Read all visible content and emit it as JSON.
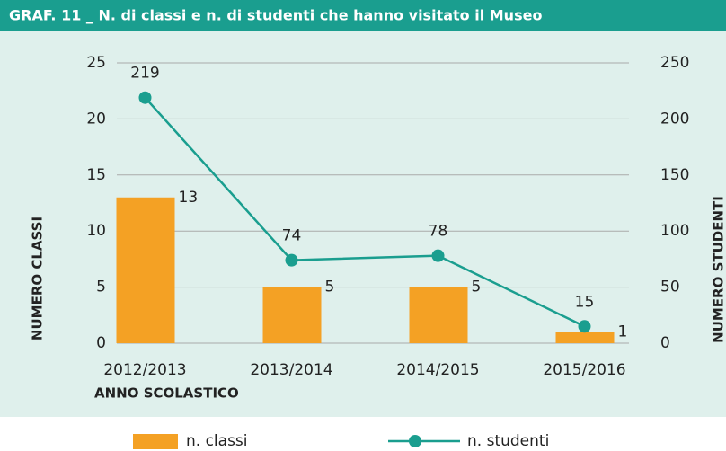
{
  "chart_data": {
    "type": "bar_line",
    "title": "GRAF. 11 _ N. di classi e n. di studenti che hanno visitato il Museo",
    "categories": [
      "2012/2013",
      "2013/2014",
      "2014/2015",
      "2015/2016"
    ],
    "x_label": "ANNO SCOLASTICO",
    "y_label": "NUMERO CLASSI",
    "y2_label": "NUMERO STUDENTI",
    "series": [
      {
        "name": "n. classi",
        "type": "bar",
        "color": "#f4a124",
        "values": [
          13,
          5,
          5,
          1
        ]
      },
      {
        "name": "n. studenti",
        "type": "line",
        "axis": "y2",
        "color": "#1a9e8f",
        "values": [
          219,
          74,
          78,
          15
        ]
      }
    ],
    "ylim": [
      0,
      25
    ],
    "yticks": [
      0,
      5,
      10,
      15,
      20,
      25
    ],
    "y2lim": [
      0,
      250
    ],
    "y2ticks": [
      0,
      50,
      100,
      150,
      200,
      250
    ],
    "grid": true,
    "legend": "bottom"
  }
}
